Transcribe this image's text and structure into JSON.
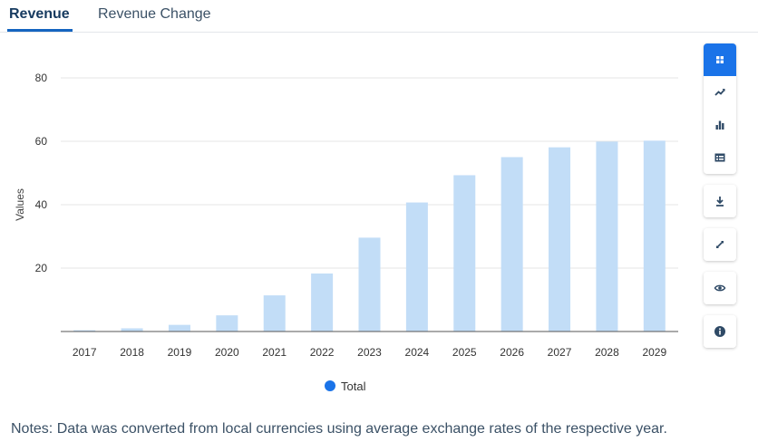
{
  "tabs": [
    {
      "label": "Revenue",
      "active": true
    },
    {
      "label": "Revenue Change",
      "active": false
    }
  ],
  "toolbar": {
    "view_buttons": [
      {
        "icon": "grid-icon",
        "active": true
      },
      {
        "icon": "line-chart-icon",
        "active": false
      },
      {
        "icon": "bar-chart-icon",
        "active": false
      },
      {
        "icon": "table-icon",
        "active": false
      }
    ],
    "actions": [
      {
        "icon": "download-icon"
      },
      {
        "icon": "expand-icon"
      },
      {
        "icon": "eye-icon"
      },
      {
        "icon": "info-icon"
      }
    ]
  },
  "colors": {
    "accent": "#1a73e8",
    "bar": "#c2ddf7",
    "text_dark": "#163a5f"
  },
  "chart_data": {
    "type": "bar",
    "categories": [
      "2017",
      "2018",
      "2019",
      "2020",
      "2021",
      "2022",
      "2023",
      "2024",
      "2025",
      "2026",
      "2027",
      "2028",
      "2029"
    ],
    "series": [
      {
        "name": "Total",
        "values": [
          0.4,
          1.0,
          2.1,
          5.1,
          11.4,
          18.3,
          29.6,
          40.7,
          49.3,
          55.0,
          58.1,
          59.9,
          60.2
        ]
      }
    ],
    "ylabel": "Values",
    "xlabel": "",
    "ylim": [
      0,
      80
    ],
    "yticks": [
      20,
      40,
      60,
      80
    ],
    "grid": true,
    "legend_position": "bottom"
  },
  "notes": "Notes: Data was converted from local currencies using average exchange rates of the respective year."
}
